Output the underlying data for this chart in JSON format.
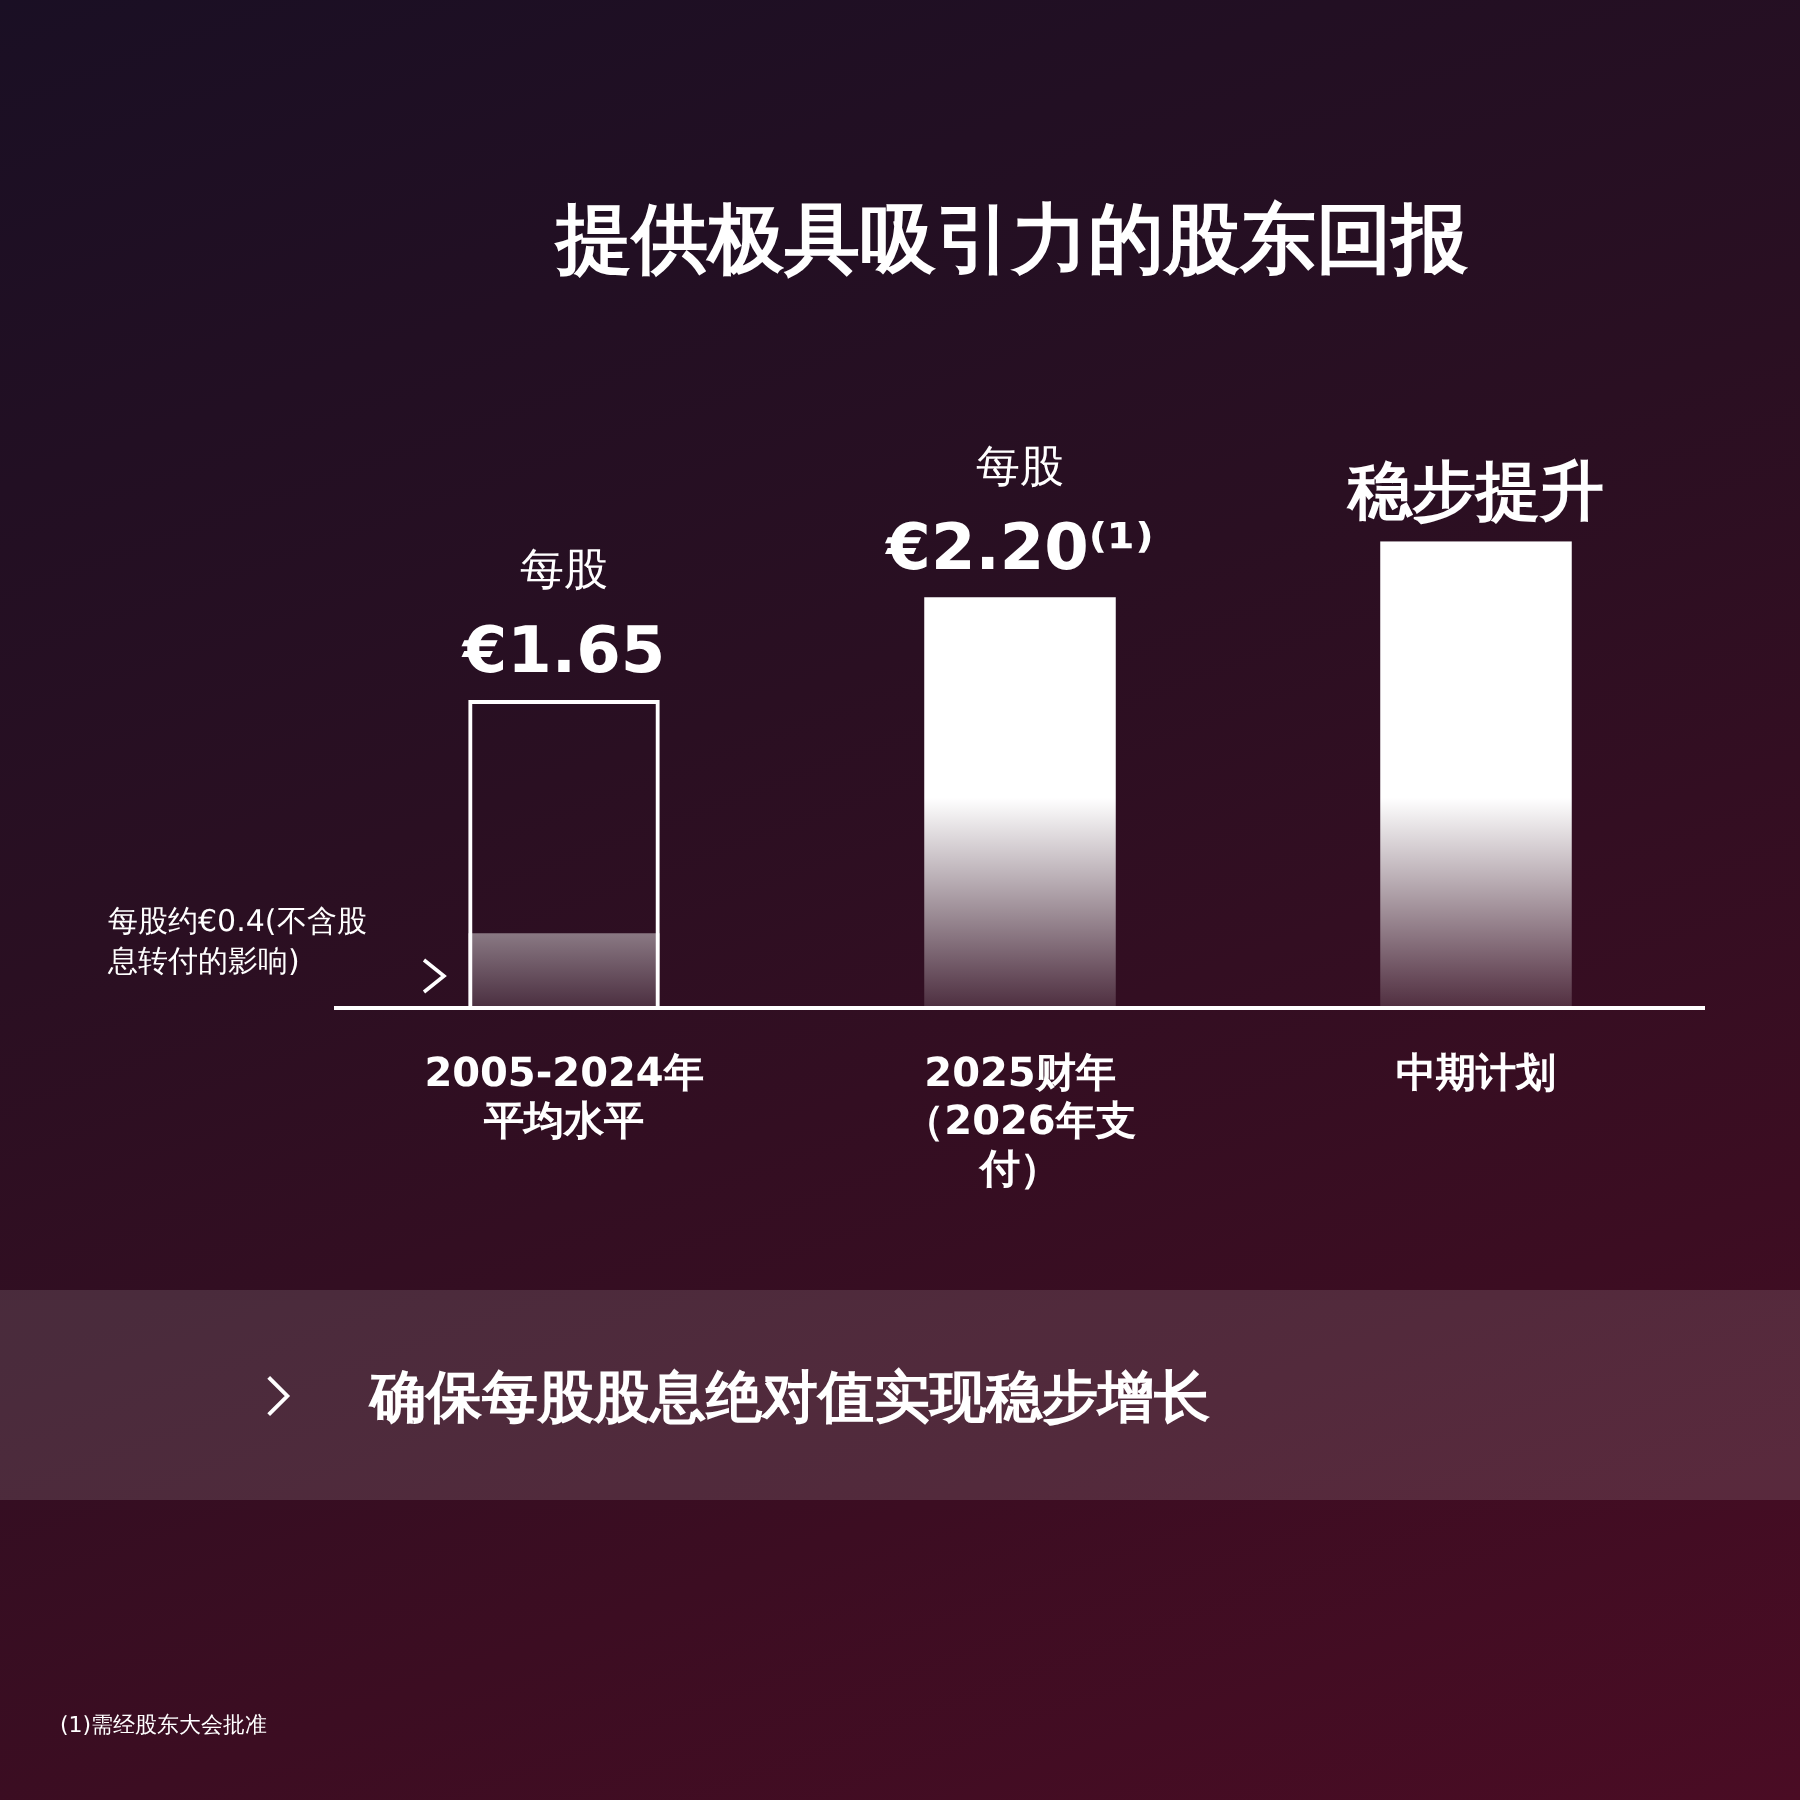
{
  "chart_data": {
    "type": "bar",
    "title": "提供极具吸引力的股东回报",
    "categories": [
      "2005-2024年平均水平",
      "2025财年（2026年支付）",
      "中期计划"
    ],
    "series": [
      {
        "color": "#ffffff",
        "values": [
          1.65,
          2.2,
          2.5
        ],
        "value_labels": [
          "€1.65",
          "€2.20⁽¹⁾",
          "稳步提升"
        ]
      },
      {
        "color": "#ffffff",
        "values": [
          0.4,
          null,
          null
        ]
      }
    ],
    "annotations": [
      "每股约€0.4(不含股息转付的影响)",
      {
        "text": "每股",
        "x": "2005-2024年平均水平",
        "y": 1.65
      },
      {
        "text": "每股",
        "x": "2025财年（2026年支付）",
        "y": 2.2
      },
      "确保每股股息绝对值实现稳步增长",
      "(1)需经股东大会批准"
    ],
    "legend": false,
    "grid": false
  }
}
